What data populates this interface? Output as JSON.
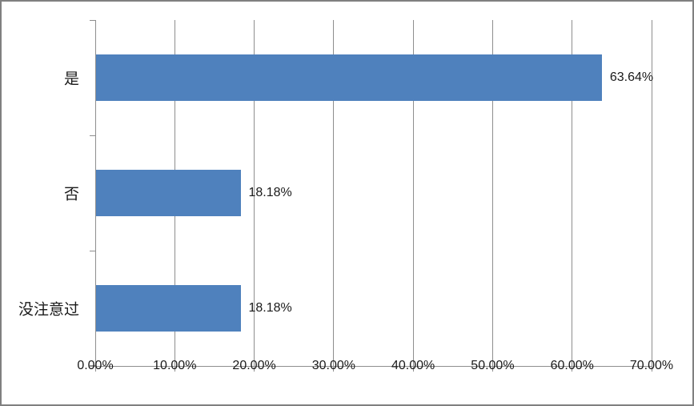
{
  "chart_data": {
    "type": "bar",
    "orientation": "horizontal",
    "title": "",
    "categories": [
      "是",
      "否",
      "没注意过"
    ],
    "values": [
      63.64,
      18.18,
      18.18
    ],
    "data_labels": [
      "63.64%",
      "18.18%",
      "18.18%"
    ],
    "xlim": [
      0,
      70
    ],
    "x_tick_step": 10,
    "x_tick_labels": [
      "0.00%",
      "10.00%",
      "20.00%",
      "30.00%",
      "40.00%",
      "50.00%",
      "60.00%",
      "70.00%"
    ],
    "bar_color": "#4F81BD",
    "gridline_color": "#8E8E8E",
    "axis_color": "#8E8E8E",
    "frame_border_color": "#808080",
    "background_color": "#FFFFFF",
    "text_color": "#1A1A1A",
    "grid": "vertical",
    "legend": "none"
  }
}
